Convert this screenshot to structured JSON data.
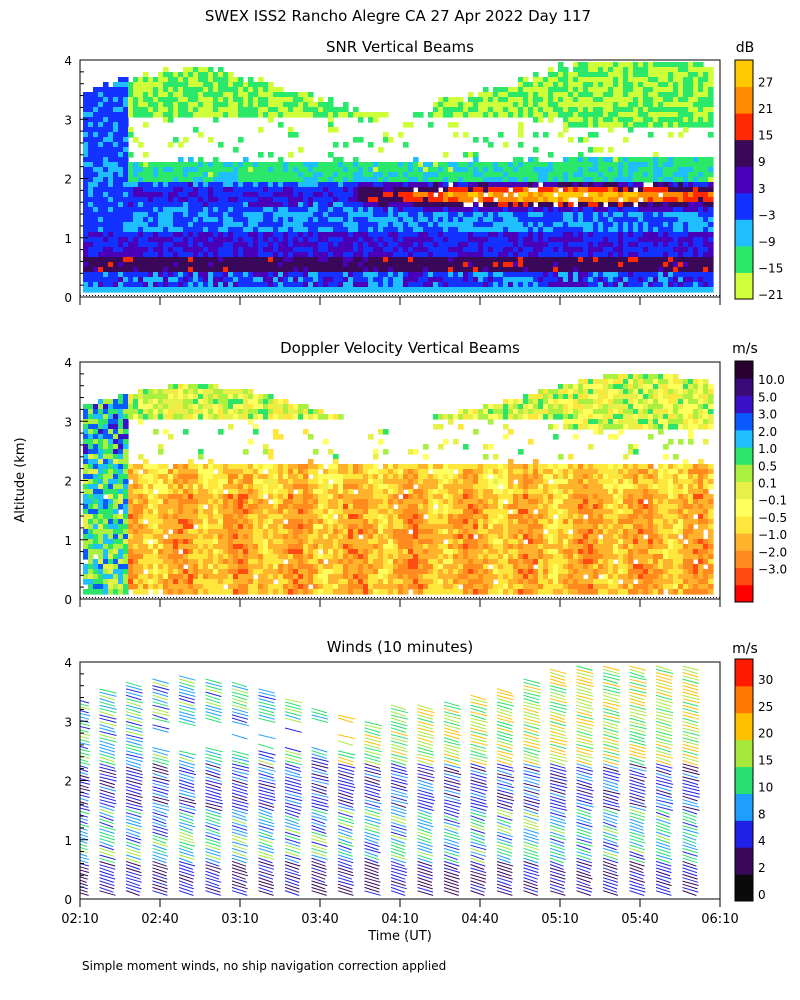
{
  "main_title": "SWEX ISS2 Rancho Alegre CA  27 Apr 2022 Day 117",
  "shared_ylabel": "Altitude (km)",
  "shared_xlabel": "Time (UT)",
  "footnote": "Simple moment winds, no ship navigation correction applied",
  "colors": {
    "snr": [
      "#cfff3a",
      "#2ce86a",
      "#1ebeff",
      "#1432ff",
      "#4a00b8",
      "#3a0858",
      "#ff2a00",
      "#ff8c00",
      "#ffc800"
    ],
    "doppler": [
      "#ff0000",
      "#ff4a10",
      "#ff8a1e",
      "#ffb22c",
      "#ffe63c",
      "#ffff5e",
      "#e6f048",
      "#aaf040",
      "#2ce46a",
      "#1ebeff",
      "#0a5aff",
      "#3a10c8",
      "#3a0a78",
      "#2a0030"
    ],
    "wind": [
      "#0a0a0a",
      "#3a0858",
      "#2020e6",
      "#1e9eff",
      "#28e070",
      "#a8e83c",
      "#ffc000",
      "#ff7a00",
      "#ff1a00"
    ]
  },
  "chart_data": [
    {
      "type": "heatmap",
      "title": "SNR Vertical Beams",
      "xlabel": "",
      "ylabel": "",
      "x_ticks": [
        "02:10",
        "02:40",
        "03:10",
        "03:40",
        "04:10",
        "04:40",
        "05:10",
        "05:40",
        "06:10"
      ],
      "y_ticks": [
        "0",
        "1",
        "2",
        "3",
        "4"
      ],
      "ylim": [
        0,
        4
      ],
      "colorbar": {
        "unit": "dB",
        "tick_labels": [
          "27",
          "21",
          "15",
          "9",
          "3",
          "−3",
          "−9",
          "−15",
          "−21"
        ]
      }
    },
    {
      "type": "heatmap",
      "title": "Doppler Velocity Vertical Beams",
      "xlabel": "",
      "ylabel": "",
      "x_ticks": [
        "02:10",
        "02:40",
        "03:10",
        "03:40",
        "04:10",
        "04:40",
        "05:10",
        "05:40",
        "06:10"
      ],
      "y_ticks": [
        "0",
        "1",
        "2",
        "3",
        "4"
      ],
      "ylim": [
        0,
        4
      ],
      "colorbar": {
        "unit": "m/s",
        "tick_labels": [
          "10.0",
          "5.0",
          "3.0",
          "2.0",
          "1.0",
          "0.5",
          "0.1",
          "−0.1",
          "−0.5",
          "−1.0",
          "−2.0",
          "−3.0"
        ]
      }
    },
    {
      "type": "scatter",
      "title": "Winds (10 minutes)",
      "xlabel": "Time (UT)",
      "ylabel": "Altitude (km)",
      "x_ticks": [
        "02:10",
        "02:40",
        "03:10",
        "03:40",
        "04:10",
        "04:40",
        "05:10",
        "05:40",
        "06:10"
      ],
      "y_ticks": [
        "0",
        "1",
        "2",
        "3",
        "4"
      ],
      "ylim": [
        0,
        4
      ],
      "colorbar": {
        "unit": "m/s",
        "tick_labels": [
          "30",
          "25",
          "20",
          "15",
          "10",
          "8",
          "4",
          "2",
          "0"
        ]
      }
    }
  ]
}
